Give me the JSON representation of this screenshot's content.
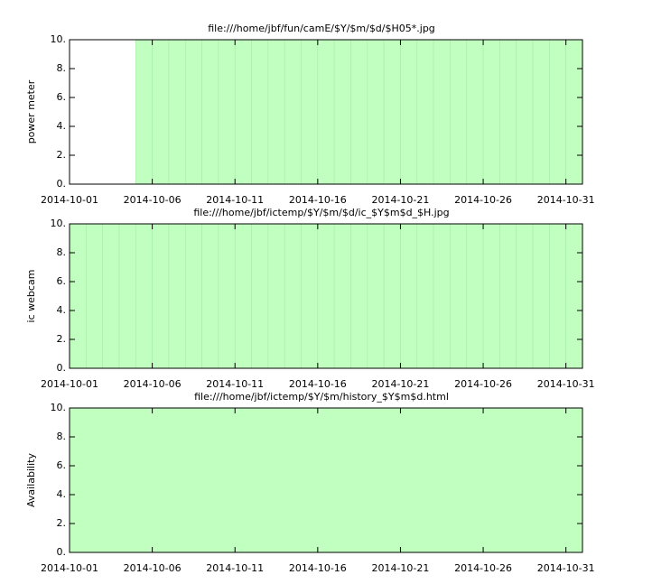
{
  "chart_data": [
    {
      "type": "bar",
      "title": "file:///home/jbf/fun/camE/$Y/$m/$d/$H05*.jpg",
      "ylabel": "power meter",
      "x": [
        "2014-10-01",
        "2014-10-02",
        "2014-10-03",
        "2014-10-04",
        "2014-10-05",
        "2014-10-06",
        "2014-10-07",
        "2014-10-08",
        "2014-10-09",
        "2014-10-10",
        "2014-10-11",
        "2014-10-12",
        "2014-10-13",
        "2014-10-14",
        "2014-10-15",
        "2014-10-16",
        "2014-10-17",
        "2014-10-18",
        "2014-10-19",
        "2014-10-20",
        "2014-10-21",
        "2014-10-22",
        "2014-10-23",
        "2014-10-24",
        "2014-10-25",
        "2014-10-26",
        "2014-10-27",
        "2014-10-28",
        "2014-10-29",
        "2014-10-30",
        "2014-10-31"
      ],
      "values": [
        0,
        0,
        0,
        0,
        10,
        10,
        10,
        10,
        10,
        10,
        10,
        10,
        10,
        10,
        10,
        10,
        10,
        10,
        10,
        10,
        10,
        10,
        10,
        10,
        10,
        10,
        10,
        10,
        10,
        10,
        10
      ],
      "color": "#c0ffc0",
      "edgecolor": "#a6eba6",
      "xlim": [
        "2014-10-01",
        "2014-11-01"
      ],
      "xticks": [
        "2014-10-01",
        "2014-10-06",
        "2014-10-11",
        "2014-10-16",
        "2014-10-21",
        "2014-10-26",
        "2014-10-31"
      ],
      "ylim": [
        0,
        10
      ],
      "yticks": [
        {
          "value": 0,
          "label": "0."
        },
        {
          "value": 2,
          "label": "2."
        },
        {
          "value": 4,
          "label": "4."
        },
        {
          "value": 6,
          "label": "6."
        },
        {
          "value": 8,
          "label": "8."
        },
        {
          "value": 10,
          "label": "10."
        }
      ]
    },
    {
      "type": "bar",
      "title": "file:///home/jbf/ictemp/$Y/$m/$d/ic_$Y$m$d_$H.jpg",
      "ylabel": "ic webcam",
      "x": [
        "2014-10-01",
        "2014-10-02",
        "2014-10-03",
        "2014-10-04",
        "2014-10-05",
        "2014-10-06",
        "2014-10-07",
        "2014-10-08",
        "2014-10-09",
        "2014-10-10",
        "2014-10-11",
        "2014-10-12",
        "2014-10-13",
        "2014-10-14",
        "2014-10-15",
        "2014-10-16",
        "2014-10-17",
        "2014-10-18",
        "2014-10-19",
        "2014-10-20",
        "2014-10-21",
        "2014-10-22",
        "2014-10-23",
        "2014-10-24",
        "2014-10-25",
        "2014-10-26",
        "2014-10-27",
        "2014-10-28",
        "2014-10-29",
        "2014-10-30",
        "2014-10-31"
      ],
      "values": [
        10,
        10,
        10,
        10,
        10,
        10,
        10,
        10,
        10,
        10,
        10,
        10,
        10,
        10,
        10,
        10,
        10,
        10,
        10,
        10,
        10,
        10,
        10,
        10,
        10,
        10,
        10,
        10,
        10,
        10,
        10
      ],
      "color": "#c0ffc0",
      "edgecolor": "#a6eba6",
      "xlim": [
        "2014-10-01",
        "2014-11-01"
      ],
      "xticks": [
        "2014-10-01",
        "2014-10-06",
        "2014-10-11",
        "2014-10-16",
        "2014-10-21",
        "2014-10-26",
        "2014-10-31"
      ],
      "ylim": [
        0,
        10
      ],
      "yticks": [
        {
          "value": 0,
          "label": "0."
        },
        {
          "value": 2,
          "label": "2."
        },
        {
          "value": 4,
          "label": "4."
        },
        {
          "value": 6,
          "label": "6."
        },
        {
          "value": 8,
          "label": "8."
        },
        {
          "value": 10,
          "label": "10."
        }
      ]
    },
    {
      "type": "bar",
      "title": "file:///home/jbf/ictemp/$Y/$m/history_$Y$m$d.html",
      "ylabel": "Availability",
      "x": [
        "2014-10-01",
        "2014-10-02",
        "2014-10-03",
        "2014-10-04",
        "2014-10-05",
        "2014-10-06",
        "2014-10-07",
        "2014-10-08",
        "2014-10-09",
        "2014-10-10",
        "2014-10-11",
        "2014-10-12",
        "2014-10-13",
        "2014-10-14",
        "2014-10-15",
        "2014-10-16",
        "2014-10-17",
        "2014-10-18",
        "2014-10-19",
        "2014-10-20",
        "2014-10-21",
        "2014-10-22",
        "2014-10-23",
        "2014-10-24",
        "2014-10-25",
        "2014-10-26",
        "2014-10-27",
        "2014-10-28",
        "2014-10-29",
        "2014-10-30",
        "2014-10-31"
      ],
      "values": [
        10,
        10,
        10,
        10,
        10,
        10,
        10,
        10,
        10,
        10,
        10,
        10,
        10,
        10,
        10,
        10,
        10,
        10,
        10,
        10,
        10,
        10,
        10,
        10,
        10,
        10,
        10,
        10,
        10,
        10,
        10
      ],
      "color": "#c0ffc0",
      "edgecolor": "#c0ffc0",
      "xlim": [
        "2014-10-01",
        "2014-11-01"
      ],
      "xticks": [
        "2014-10-01",
        "2014-10-06",
        "2014-10-11",
        "2014-10-16",
        "2014-10-21",
        "2014-10-26",
        "2014-10-31"
      ],
      "ylim": [
        0,
        10
      ],
      "yticks": [
        {
          "value": 0,
          "label": "0."
        },
        {
          "value": 2,
          "label": "2."
        },
        {
          "value": 4,
          "label": "4."
        },
        {
          "value": 6,
          "label": "6."
        },
        {
          "value": 8,
          "label": "8."
        },
        {
          "value": 10,
          "label": "10."
        }
      ]
    }
  ]
}
